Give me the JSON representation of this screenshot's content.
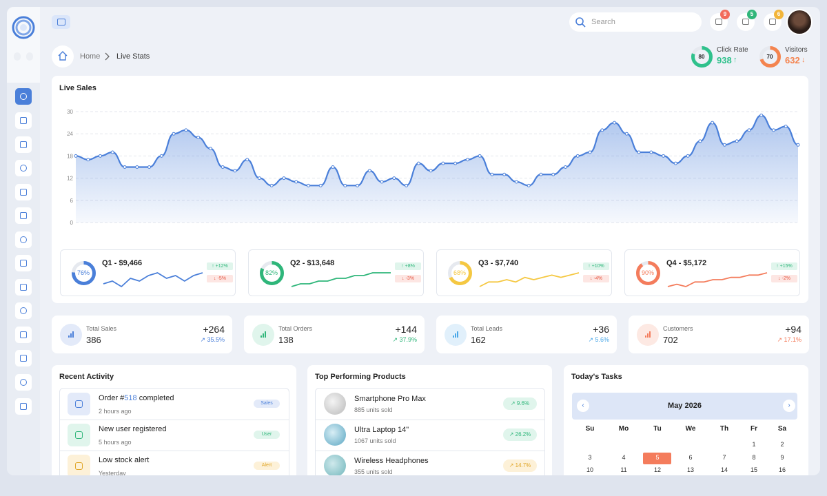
{
  "topbar": {
    "search_placeholder": "Search",
    "badges": [
      {
        "count": 9,
        "color": "#f26b5b"
      },
      {
        "count": 5,
        "color": "#2fb67a"
      },
      {
        "count": 6,
        "color": "#f2b53a"
      }
    ]
  },
  "breadcrumb": [
    "Home",
    "Live Stats"
  ],
  "kpis": [
    {
      "label": "Click Rate",
      "gauge": 80,
      "value": 938,
      "trend": "↑",
      "color": "#2fc18c"
    },
    {
      "label": "Visitors",
      "gauge": 70,
      "value": 632,
      "trend": "↓",
      "color": "#f4844f"
    }
  ],
  "live_sales": {
    "title": "Live Sales",
    "type": "line",
    "color": "#4a7fd9",
    "ylim": [
      0,
      30
    ],
    "yticks": [
      0,
      6,
      12,
      18,
      24,
      30
    ],
    "grid": true,
    "values": [
      18,
      17,
      18,
      19,
      15,
      15,
      15,
      18,
      24,
      25,
      23,
      20,
      15,
      14,
      17,
      12,
      10,
      12,
      11,
      10,
      10,
      15,
      10,
      10,
      14,
      11,
      12,
      10,
      16,
      14,
      16,
      16,
      17,
      18,
      13,
      13,
      11,
      10,
      13,
      13,
      15,
      18,
      19,
      25,
      27,
      24,
      19,
      19,
      18,
      16,
      18,
      22,
      27,
      21,
      22,
      25,
      29,
      25,
      26,
      21
    ]
  },
  "quarters": [
    {
      "title": "Q1 - $9,466",
      "percent": 76,
      "percent_label": "76%",
      "up": "↑ +12%",
      "down": "↓ -5%",
      "color": "#4a7fd9",
      "trend": [
        3,
        4,
        2,
        5,
        4,
        6,
        7,
        5,
        6,
        4,
        6,
        7
      ]
    },
    {
      "title": "Q2 - $13,648",
      "percent": 82,
      "percent_label": "82%",
      "up": "↑ +8%",
      "down": "↓ -3%",
      "color": "#2fb67a",
      "trend": [
        1,
        2,
        2,
        3,
        3,
        4,
        4,
        5,
        5,
        6,
        6,
        6
      ]
    },
    {
      "title": "Q3 - $7,740",
      "percent": 68,
      "percent_label": "68%",
      "up": "↑ +10%",
      "down": "↓ -4%",
      "color": "#f5c842",
      "trend": [
        1,
        3,
        3,
        4,
        3,
        5,
        4,
        5,
        6,
        5,
        6,
        7
      ]
    },
    {
      "title": "Q4 - $5,172",
      "percent": 90,
      "percent_label": "90%",
      "up": "↑ +15%",
      "down": "↓ -2%",
      "color": "#f47c5c",
      "trend": [
        1,
        2,
        1,
        3,
        3,
        4,
        4,
        5,
        5,
        6,
        6,
        7
      ]
    }
  ],
  "stats": [
    {
      "label": "Total Sales",
      "value": 386,
      "change": "+264",
      "growth": "↗ 35.5%",
      "color": "#4a7fd9",
      "tint": "#e3eaf9"
    },
    {
      "label": "Total Orders",
      "value": 138,
      "change": "+144",
      "growth": "↗ 37.9%",
      "color": "#2fb67a",
      "tint": "#e0f5ec"
    },
    {
      "label": "Total Leads",
      "value": 162,
      "change": "+36",
      "growth": "↗ 5.6%",
      "color": "#4aa8e8",
      "tint": "#e1f0fb"
    },
    {
      "label": "Customers",
      "value": 702,
      "change": "+94",
      "growth": "↗ 17.1%",
      "color": "#f47c5c",
      "tint": "#fde9e3"
    }
  ],
  "recent_activity": {
    "title": "Recent Activity",
    "items": [
      {
        "text": "Order #",
        "highlight": "518",
        "text_after": " completed",
        "time": "2 hours ago",
        "tag": "Sales",
        "color": "#4a7fd9",
        "tint": "#e3eaf9"
      },
      {
        "text": "New user registered",
        "time": "5 hours ago",
        "tag": "User",
        "color": "#2fb67a",
        "tint": "#e0f5ec"
      },
      {
        "text": "Low stock alert",
        "time": "Yesterday",
        "tag": "Alert",
        "color": "#e0a526",
        "tint": "#fdf1d8"
      }
    ]
  },
  "products": {
    "title": "Top Performing Products",
    "items": [
      {
        "name": "Smartphone Pro Max",
        "sold": "885 units sold",
        "growth": "↗ 9.6%",
        "color": "#2fb67a",
        "tint": "#e0f5ec"
      },
      {
        "name": "Ultra Laptop 14\"",
        "sold": "1067 units sold",
        "growth": "↗ 26.2%",
        "color": "#2fb67a",
        "tint": "#e0f5ec"
      },
      {
        "name": "Wireless Headphones",
        "sold": "355 units sold",
        "growth": "↗ 14.7%",
        "color": "#e0a526",
        "tint": "#fdf1d8"
      }
    ]
  },
  "tasks": {
    "title": "Today's Tasks",
    "calendar": {
      "month": "May 2026",
      "weekdays": [
        "Su",
        "Mo",
        "Tu",
        "We",
        "Th",
        "Fr",
        "Sa"
      ],
      "weeks": [
        [
          null,
          null,
          null,
          null,
          null,
          1,
          2
        ],
        [
          3,
          4,
          5,
          6,
          7,
          8,
          9
        ],
        [
          10,
          11,
          12,
          13,
          14,
          15,
          16
        ]
      ],
      "selected": 5
    }
  }
}
